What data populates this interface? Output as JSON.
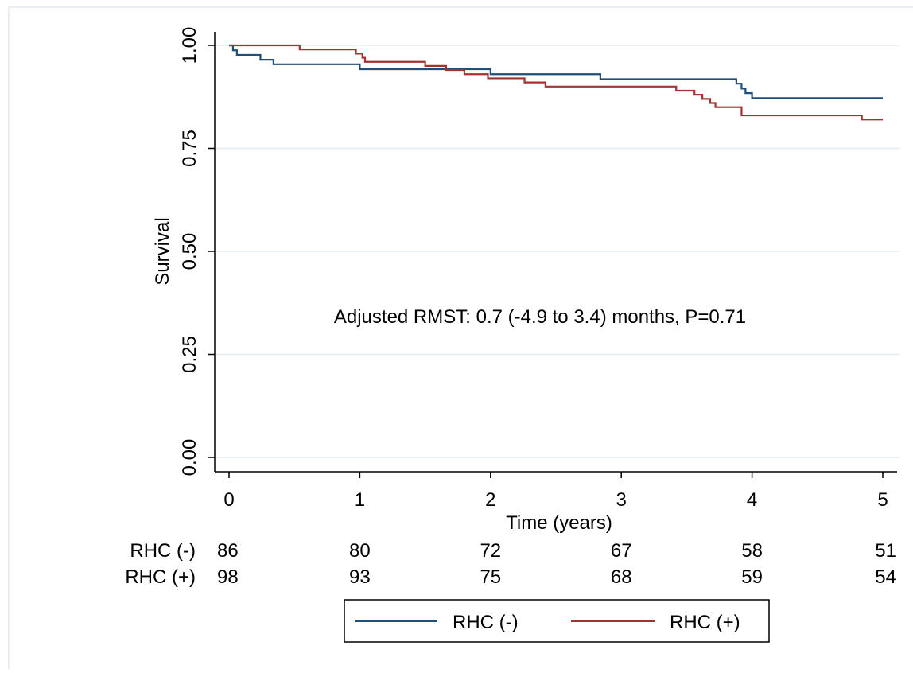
{
  "chart_data": {
    "type": "line",
    "step": true,
    "xlabel": "Time (years)",
    "ylabel": "Survival",
    "xlim": [
      0,
      5
    ],
    "ylim": [
      0,
      1
    ],
    "x_ticks": [
      "0",
      "1",
      "2",
      "3",
      "4",
      "5"
    ],
    "y_ticks": [
      "0.00",
      "0.25",
      "0.50",
      "0.75",
      "1.00"
    ],
    "grid": "horizontal",
    "annotation": "Adjusted RMST: 0.7 (-4.9 to 3.4) months, P=0.71",
    "legend_position": "bottom",
    "series": [
      {
        "name": "RHC (-)",
        "color": "#1f4e79",
        "points": [
          [
            0,
            1.0
          ],
          [
            0.03,
            0.988
          ],
          [
            0.06,
            0.977
          ],
          [
            0.24,
            0.965
          ],
          [
            0.34,
            0.954
          ],
          [
            1.0,
            0.942
          ],
          [
            1.58,
            0.942
          ],
          [
            2.0,
            0.93
          ],
          [
            2.84,
            0.918
          ],
          [
            3.88,
            0.907
          ],
          [
            3.92,
            0.895
          ],
          [
            3.95,
            0.884
          ],
          [
            4.0,
            0.872
          ],
          [
            5.0,
            0.872
          ]
        ]
      },
      {
        "name": "RHC (+)",
        "color": "#a33232",
        "points": [
          [
            0,
            1.0
          ],
          [
            0.54,
            0.99
          ],
          [
            0.97,
            0.98
          ],
          [
            1.02,
            0.97
          ],
          [
            1.04,
            0.96
          ],
          [
            1.5,
            0.95
          ],
          [
            1.66,
            0.94
          ],
          [
            1.8,
            0.93
          ],
          [
            1.98,
            0.92
          ],
          [
            2.26,
            0.91
          ],
          [
            2.42,
            0.9
          ],
          [
            3.42,
            0.89
          ],
          [
            3.56,
            0.88
          ],
          [
            3.62,
            0.87
          ],
          [
            3.68,
            0.86
          ],
          [
            3.72,
            0.85
          ],
          [
            3.92,
            0.83
          ],
          [
            4.84,
            0.82
          ],
          [
            5.0,
            0.82
          ]
        ]
      }
    ],
    "risk_table": {
      "rows": [
        {
          "label": "RHC (-)",
          "values": [
            "86",
            "80",
            "72",
            "67",
            "58",
            "51"
          ]
        },
        {
          "label": "RHC (+)",
          "values": [
            "98",
            "93",
            "75",
            "68",
            "59",
            "54"
          ]
        }
      ]
    }
  }
}
